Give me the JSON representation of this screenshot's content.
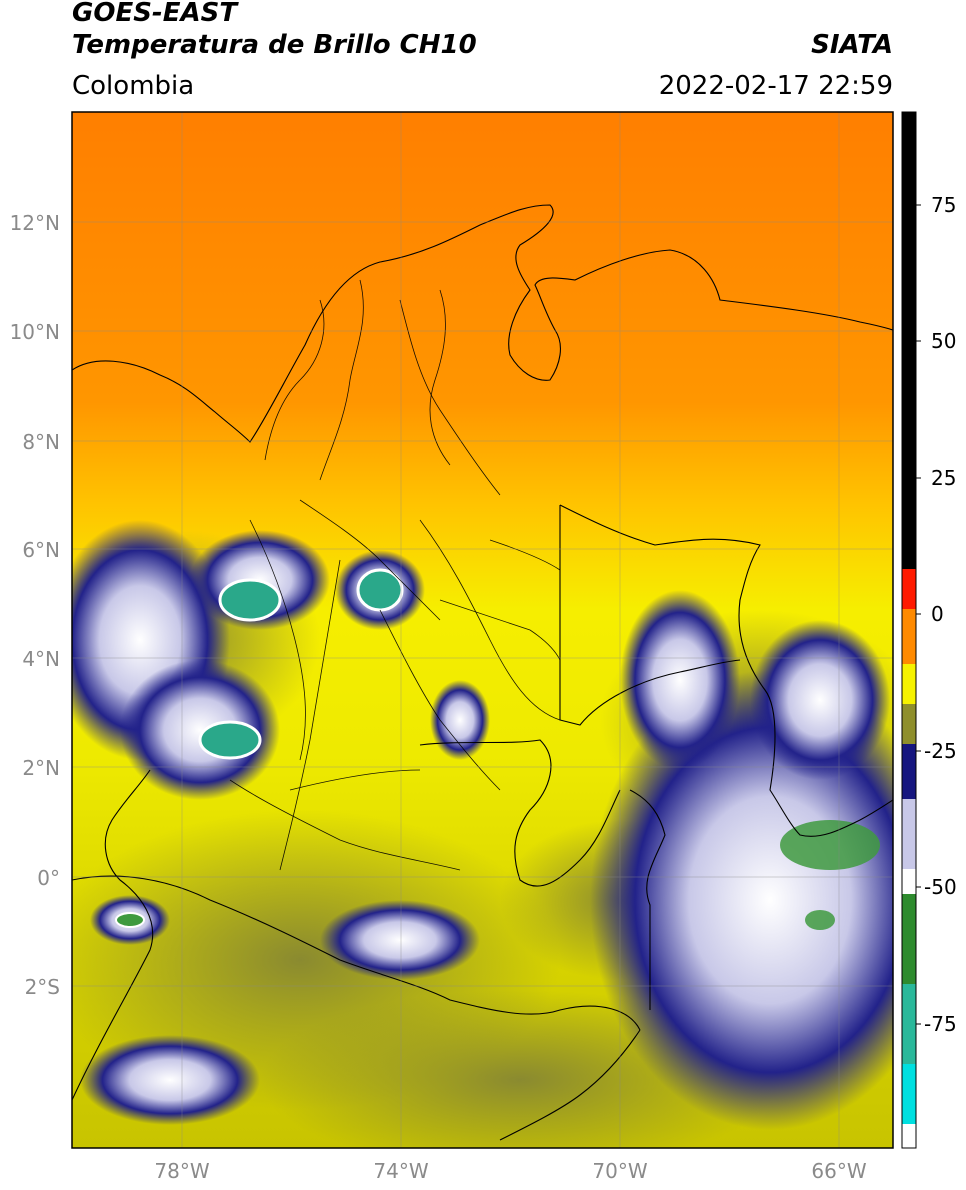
{
  "header": {
    "satellite": "GOES-EAST",
    "product": "Temperatura de Brillo CH10",
    "region": "Colombia",
    "organization": "SIATA",
    "datetime": "2022-02-17 22:59"
  },
  "map": {
    "lon_range": [
      -80.0,
      -65.0
    ],
    "lat_range": [
      -5.0,
      14.0
    ],
    "grid": true,
    "lat_ticks": [
      {
        "value": 12,
        "label": "12°N"
      },
      {
        "value": 10,
        "label": "10°N"
      },
      {
        "value": 8,
        "label": "8°N"
      },
      {
        "value": 6,
        "label": "6°N"
      },
      {
        "value": 4,
        "label": "4°N"
      },
      {
        "value": 2,
        "label": "2°N"
      },
      {
        "value": 0,
        "label": "0°"
      },
      {
        "value": -2,
        "label": "2°S"
      }
    ],
    "lon_ticks": [
      {
        "value": -78,
        "label": "78°W"
      },
      {
        "value": -74,
        "label": "74°W"
      },
      {
        "value": -70,
        "label": "70°W"
      },
      {
        "value": -66,
        "label": "66°W"
      }
    ]
  },
  "colorbar": {
    "range": [
      -95,
      90
    ],
    "ticks": [
      {
        "value": 75,
        "label": "75"
      },
      {
        "value": 50,
        "label": "50"
      },
      {
        "value": 25,
        "label": "25"
      },
      {
        "value": 0,
        "label": "0"
      },
      {
        "value": -25,
        "label": "-25"
      },
      {
        "value": -50,
        "label": "-50"
      },
      {
        "value": -75,
        "label": "-75"
      }
    ],
    "colors": {
      "black": "#000000",
      "red": "#ff1a00",
      "orange": "#ff8a00",
      "yellow": "#f6f200",
      "olive": "#8f8f2c",
      "navy": "#16167f",
      "white": "#ffffff",
      "green": "#2e8b2e",
      "teal": "#2ab89a",
      "cyan": "#00e0e0"
    }
  }
}
